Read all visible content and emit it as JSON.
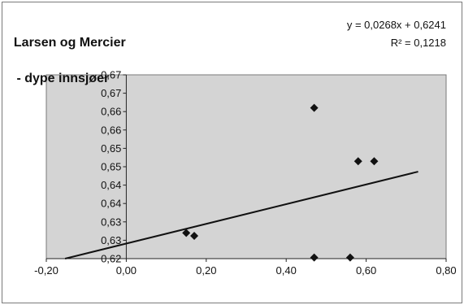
{
  "chart_data": {
    "type": "scatter",
    "title_line1": "Larsen og Mercier",
    "title_line2": " - dype innsjøer",
    "trendline": {
      "equation": "y = 0,0268x + 0,6241",
      "r_squared": "R² = 0,1218",
      "slope": 0.0268,
      "intercept": 0.6241,
      "x_start": -0.2,
      "x_end": 0.73
    },
    "points": [
      {
        "x": 0.15,
        "y": 0.627
      },
      {
        "x": 0.17,
        "y": 0.6262
      },
      {
        "x": 0.47,
        "y": 0.661
      },
      {
        "x": 0.58,
        "y": 0.6465
      },
      {
        "x": 0.62,
        "y": 0.6465
      },
      {
        "x": 0.47,
        "y": 0.6203
      },
      {
        "x": 0.56,
        "y": 0.6203
      }
    ],
    "xlim": [
      -0.2,
      0.8
    ],
    "ylim": [
      0.62,
      0.67
    ],
    "x_ticks": [
      {
        "value": -0.2,
        "label": "-0,20"
      },
      {
        "value": 0.0,
        "label": "0,00"
      },
      {
        "value": 0.2,
        "label": "0,20"
      },
      {
        "value": 0.4,
        "label": "0,40"
      },
      {
        "value": 0.6,
        "label": "0,60"
      },
      {
        "value": 0.8,
        "label": "0,80"
      }
    ],
    "y_ticks": [
      {
        "value": 0.62,
        "label": "0,62"
      },
      {
        "value": 0.625,
        "label": "0,63"
      },
      {
        "value": 0.63,
        "label": "0,63"
      },
      {
        "value": 0.635,
        "label": "0,64"
      },
      {
        "value": 0.64,
        "label": "0,64"
      },
      {
        "value": 0.645,
        "label": "0,65"
      },
      {
        "value": 0.65,
        "label": "0,65"
      },
      {
        "value": 0.655,
        "label": "0,66"
      },
      {
        "value": 0.66,
        "label": "0,66"
      },
      {
        "value": 0.665,
        "label": "0,67"
      },
      {
        "value": 0.67,
        "label": "0,67"
      }
    ],
    "grid": false,
    "colors": {
      "plot_background": "#d4d4d4",
      "marker": "#111111",
      "trendline": "#111111"
    }
  }
}
